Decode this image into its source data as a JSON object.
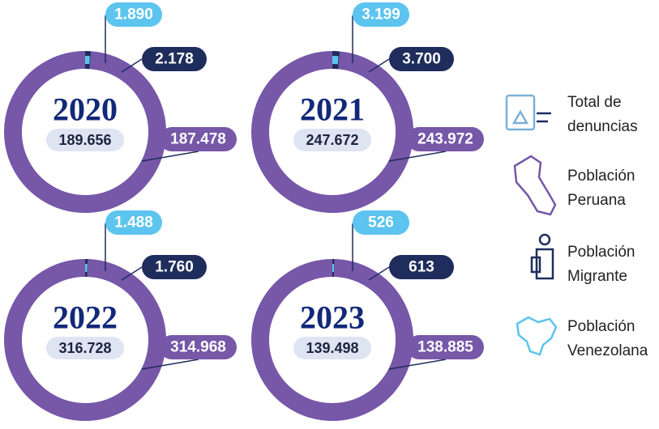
{
  "chart_data": [
    {
      "type": "donut",
      "title": "2020",
      "total": 189656,
      "total_label": "189.656",
      "values": [
        187478,
        2178,
        1890
      ],
      "value_labels": [
        "187.478",
        "2.178",
        "1.890"
      ]
    },
    {
      "type": "donut",
      "title": "2021",
      "total": 247672,
      "total_label": "247.672",
      "values": [
        243972,
        3700,
        3199
      ],
      "value_labels": [
        "243.972",
        "3.700",
        "3.199"
      ]
    },
    {
      "type": "donut",
      "title": "2022",
      "total": 316728,
      "total_label": "316.728",
      "values": [
        314968,
        1760,
        1488
      ],
      "value_labels": [
        "314.968",
        "1.760",
        "1.488"
      ]
    },
    {
      "type": "donut",
      "title": "2023",
      "total": 139498,
      "total_label": "139.498",
      "values": [
        138885,
        613,
        526
      ],
      "value_labels": [
        "138.885",
        "613",
        "526"
      ]
    }
  ],
  "legend": [
    {
      "name": "Total de denuncias",
      "color": "#dfe4f3"
    },
    {
      "name": "Población Peruana",
      "color": "#7657a8"
    },
    {
      "name": "Población Migrante",
      "color": "#1f2d5c"
    },
    {
      "name": "Población Venezolana",
      "color": "#5cc4ee"
    }
  ]
}
